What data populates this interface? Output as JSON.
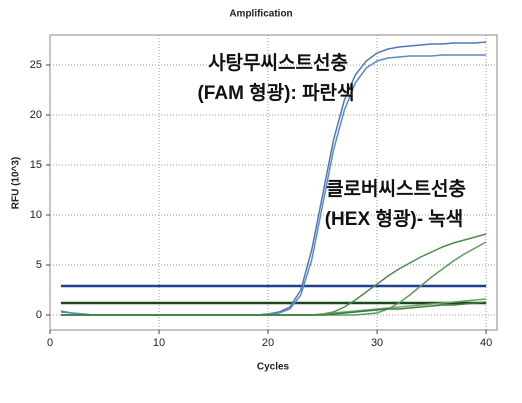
{
  "chart_data": {
    "type": "line",
    "title": "Amplification",
    "xlabel": "Cycles",
    "ylabel": "RFU (10^3)",
    "annotations": [
      "사탕무씨스트선충",
      "(FAM 형광): 파란색",
      "클로버씨스트선충",
      "(HEX 형광)- 녹색"
    ],
    "x": [
      1,
      2,
      3,
      4,
      5,
      6,
      7,
      8,
      9,
      10,
      11,
      12,
      13,
      14,
      15,
      16,
      17,
      18,
      19,
      20,
      21,
      22,
      23,
      24,
      25,
      26,
      27,
      28,
      29,
      30,
      31,
      32,
      33,
      34,
      35,
      36,
      37,
      38,
      39,
      40
    ],
    "xlim": [
      0,
      41
    ],
    "xticks": [
      0,
      10,
      20,
      30,
      40
    ],
    "ylim": [
      -1.5,
      28
    ],
    "yticks": [
      0,
      5,
      10,
      15,
      20,
      25
    ],
    "grid": true,
    "series": [
      {
        "color": "#4a7ab8",
        "values": [
          0.3,
          0.2,
          0.1,
          0,
          0,
          0,
          0,
          0,
          0,
          0,
          0,
          0,
          0,
          0,
          0,
          0,
          0,
          0,
          0,
          0.1,
          0.3,
          0.8,
          2.5,
          6.5,
          12,
          17.5,
          21.5,
          24,
          25.4,
          26.2,
          26.6,
          26.8,
          26.9,
          27,
          27.1,
          27.1,
          27.2,
          27.2,
          27.2,
          27.3
        ]
      },
      {
        "color": "#5b8ac4",
        "values": [
          0.4,
          0.2,
          0.1,
          0,
          0,
          0,
          0,
          0,
          0,
          0,
          0,
          0,
          0,
          0,
          0,
          0,
          0,
          0,
          0,
          0.1,
          0.2,
          0.6,
          2,
          5.5,
          11,
          16.5,
          20.5,
          23.2,
          24.7,
          25.4,
          25.7,
          25.8,
          25.9,
          25.9,
          25.9,
          26,
          26,
          26,
          26,
          26
        ]
      },
      {
        "color": "#4e8a4e",
        "values": [
          0,
          0,
          0,
          0,
          0,
          0,
          0,
          0,
          0,
          0,
          0,
          0,
          0,
          0,
          0,
          0,
          0,
          0,
          0,
          0,
          0,
          0,
          0,
          0,
          0.1,
          0.3,
          0.8,
          1.5,
          2.3,
          3.1,
          3.9,
          4.6,
          5.2,
          5.8,
          6.3,
          6.8,
          7.2,
          7.5,
          7.8,
          8.1
        ]
      },
      {
        "color": "#5e9a5e",
        "values": [
          0,
          0,
          0,
          0,
          0,
          0,
          0,
          0,
          0,
          0,
          0,
          0,
          0,
          0,
          0,
          0,
          0,
          0,
          0,
          0,
          0,
          0,
          0,
          0,
          0,
          0,
          0,
          0,
          0.1,
          0.2,
          0.6,
          1.2,
          2,
          2.9,
          3.8,
          4.6,
          5.4,
          6.1,
          6.7,
          7.3
        ]
      },
      {
        "color": "#6aa66a",
        "values": [
          0,
          0,
          0,
          0,
          0,
          0,
          0,
          0,
          0,
          0,
          0,
          0,
          0,
          0,
          0,
          0,
          0,
          0,
          0,
          0,
          0,
          0,
          0,
          0,
          0.1,
          0.2,
          0.3,
          0.4,
          0.5,
          0.6,
          0.7,
          0.8,
          0.9,
          1,
          1.1,
          1.2,
          1.3,
          1.4,
          1.5,
          1.6
        ]
      },
      {
        "color": "#3f7a3f",
        "values": [
          0,
          0,
          0,
          0,
          0,
          0,
          0,
          0,
          0,
          0,
          0,
          0,
          0,
          0,
          0,
          0,
          0,
          0,
          0,
          0,
          0,
          0,
          0,
          0,
          0,
          0.1,
          0.2,
          0.3,
          0.4,
          0.5,
          0.6,
          0.6,
          0.7,
          0.8,
          0.9,
          1,
          1,
          1.1,
          1.2,
          1.3
        ]
      }
    ],
    "thresholds": [
      {
        "value": 2.9,
        "color": "#1f3f8f"
      },
      {
        "value": 1.2,
        "color": "#1a4a1a"
      }
    ]
  }
}
